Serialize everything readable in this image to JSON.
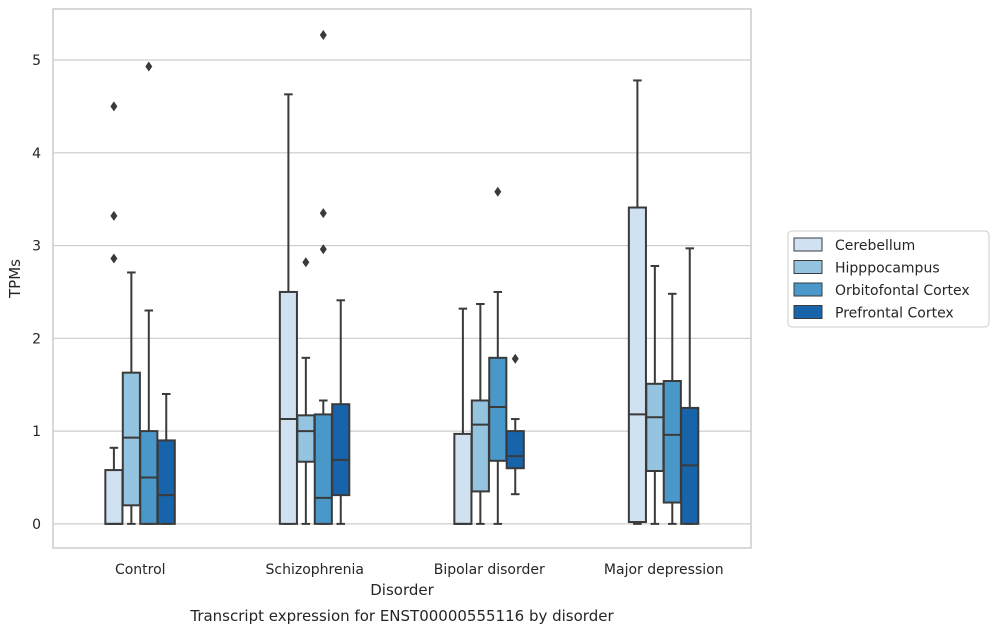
{
  "chart_data": {
    "type": "box",
    "title": "Transcript expression for ENST00000555116 by disorder",
    "xlabel": "Disorder",
    "ylabel": "TPMs",
    "ylim": [
      -0.26,
      5.55
    ],
    "yticks": [
      0,
      1,
      2,
      3,
      4,
      5
    ],
    "grid": "horizontal",
    "legend_position": "right",
    "categories": [
      "Control",
      "Schizophrenia",
      "Bipolar disorder",
      "Major depression"
    ],
    "series": [
      {
        "name": "Cerebellum",
        "color": "#d0e1f2",
        "boxes": [
          {
            "whislo": 0.0,
            "q1": 0.0,
            "med": 0.0,
            "q3": 0.58,
            "whishi": 0.82,
            "fliers": [
              2.86,
              3.32,
              4.5
            ]
          },
          {
            "whislo": 0.0,
            "q1": 0.0,
            "med": 1.13,
            "q3": 2.5,
            "whishi": 4.63,
            "fliers": []
          },
          {
            "whislo": 0.0,
            "q1": 0.0,
            "med": 0.0,
            "q3": 0.97,
            "whishi": 2.32,
            "fliers": []
          },
          {
            "whislo": 0.0,
            "q1": 0.02,
            "med": 1.18,
            "q3": 3.41,
            "whishi": 4.78,
            "fliers": []
          }
        ]
      },
      {
        "name": "Hipppocampus",
        "color": "#94c4df",
        "boxes": [
          {
            "whislo": 0.0,
            "q1": 0.2,
            "med": 0.93,
            "q3": 1.63,
            "whishi": 2.71,
            "fliers": []
          },
          {
            "whislo": 0.0,
            "q1": 0.67,
            "med": 1.0,
            "q3": 1.17,
            "whishi": 1.79,
            "fliers": [
              2.82
            ]
          },
          {
            "whislo": 0.0,
            "q1": 0.35,
            "med": 1.07,
            "q3": 1.33,
            "whishi": 2.37,
            "fliers": []
          },
          {
            "whislo": 0.0,
            "q1": 0.57,
            "med": 1.15,
            "q3": 1.51,
            "whishi": 2.78,
            "fliers": []
          }
        ]
      },
      {
        "name": "Orbitofontal Cortex",
        "color": "#4a98c9",
        "boxes": [
          {
            "whislo": 0.0,
            "q1": 0.0,
            "med": 0.5,
            "q3": 1.0,
            "whishi": 2.3,
            "fliers": [
              4.93
            ]
          },
          {
            "whislo": 0.0,
            "q1": 0.0,
            "med": 0.28,
            "q3": 1.18,
            "whishi": 1.33,
            "fliers": [
              2.96,
              3.35,
              5.27
            ]
          },
          {
            "whislo": 0.0,
            "q1": 0.68,
            "med": 1.26,
            "q3": 1.79,
            "whishi": 2.5,
            "fliers": [
              3.58
            ]
          },
          {
            "whislo": 0.0,
            "q1": 0.23,
            "med": 0.96,
            "q3": 1.54,
            "whishi": 2.48,
            "fliers": []
          }
        ]
      },
      {
        "name": "Prefrontal Cortex",
        "color": "#1764ab",
        "boxes": [
          {
            "whislo": 0.0,
            "q1": 0.0,
            "med": 0.31,
            "q3": 0.9,
            "whishi": 1.4,
            "fliers": []
          },
          {
            "whislo": 0.0,
            "q1": 0.31,
            "med": 0.69,
            "q3": 1.29,
            "whishi": 2.41,
            "fliers": []
          },
          {
            "whislo": 0.32,
            "q1": 0.6,
            "med": 0.73,
            "q3": 1.0,
            "whishi": 1.13,
            "fliers": [
              1.78
            ]
          },
          {
            "whislo": 0.0,
            "q1": 0.0,
            "med": 0.63,
            "q3": 1.25,
            "whishi": 2.97,
            "fliers": []
          }
        ]
      }
    ]
  }
}
